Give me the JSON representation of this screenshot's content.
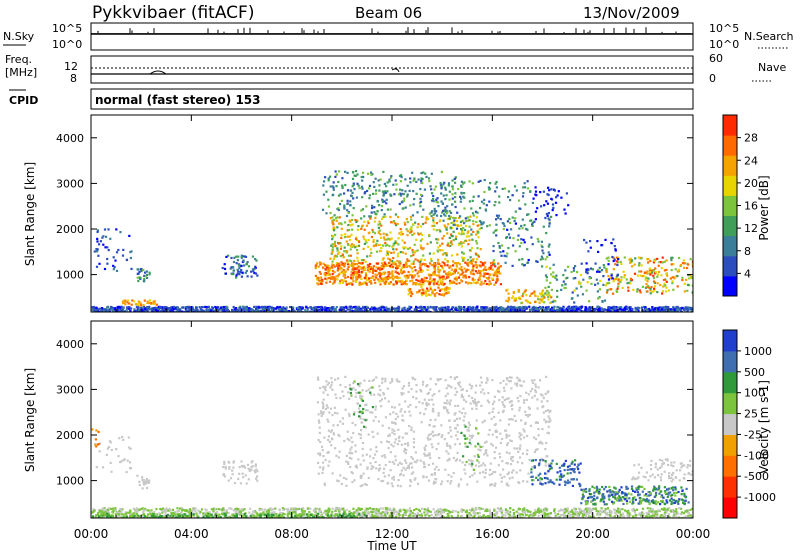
{
  "header": {
    "station": "Pykkvibaer (fitACF)",
    "beam": "Beam 06",
    "date": "13/Nov/2009"
  },
  "noise_panel": {
    "left_label": "N.Sky",
    "left_ticks": [
      "10^5",
      "10^0"
    ],
    "right_ticks": [
      "10^5",
      "10^0"
    ],
    "right_label": "N.Search"
  },
  "freq_panel": {
    "left_label_1": "Freq.",
    "left_label_2": "[MHz]",
    "left_ticks": [
      "12",
      "8"
    ],
    "right_ticks": [
      "60",
      "0"
    ],
    "right_label": "Nave"
  },
  "cpid": {
    "label": "CPID",
    "text": "normal (fast stereo) 153"
  },
  "xaxis": {
    "title": "Time UT",
    "ticks": [
      "00:00",
      "04:00",
      "08:00",
      "12:00",
      "16:00",
      "20:00",
      "00:00"
    ]
  },
  "chart_data": [
    {
      "type": "heatmap",
      "ylabel": "Slant Range [km]",
      "xlabel": "Time UT",
      "xlim_hours": [
        0,
        24
      ],
      "ylim_km": [
        180,
        4500
      ],
      "yticks": [
        "1000",
        "2000",
        "3000",
        "4000"
      ],
      "colorbar": {
        "label": "Power [dB]",
        "ticks": [
          "4",
          "8",
          "12",
          "16",
          "20",
          "24",
          "28"
        ],
        "range": [
          0,
          30
        ],
        "colors": [
          "#0000ff",
          "#2c4dbd",
          "#3a7e9a",
          "#3e9e5a",
          "#7bc43c",
          "#e8d400",
          "#f5a300",
          "#ff6a00",
          "#ff2a00"
        ]
      }
    },
    {
      "type": "heatmap",
      "ylabel": "Slant Range [km]",
      "xlabel": "Time UT",
      "xlim_hours": [
        0,
        24
      ],
      "ylim_km": [
        180,
        4500
      ],
      "yticks": [
        "1000",
        "2000",
        "3000",
        "4000"
      ],
      "colorbar": {
        "label": "Velocity [m s-1]",
        "ticks": [
          "1000",
          "500",
          "100",
          "25",
          "-25",
          "-100",
          "-500",
          "-1000"
        ],
        "colors": [
          "#1f3fcc",
          "#3f6fb0",
          "#2f9a3a",
          "#7bc43c",
          "#c8c8c8",
          "#f0a000",
          "#ff7000",
          "#ff3000",
          "#ff0000"
        ]
      }
    }
  ]
}
